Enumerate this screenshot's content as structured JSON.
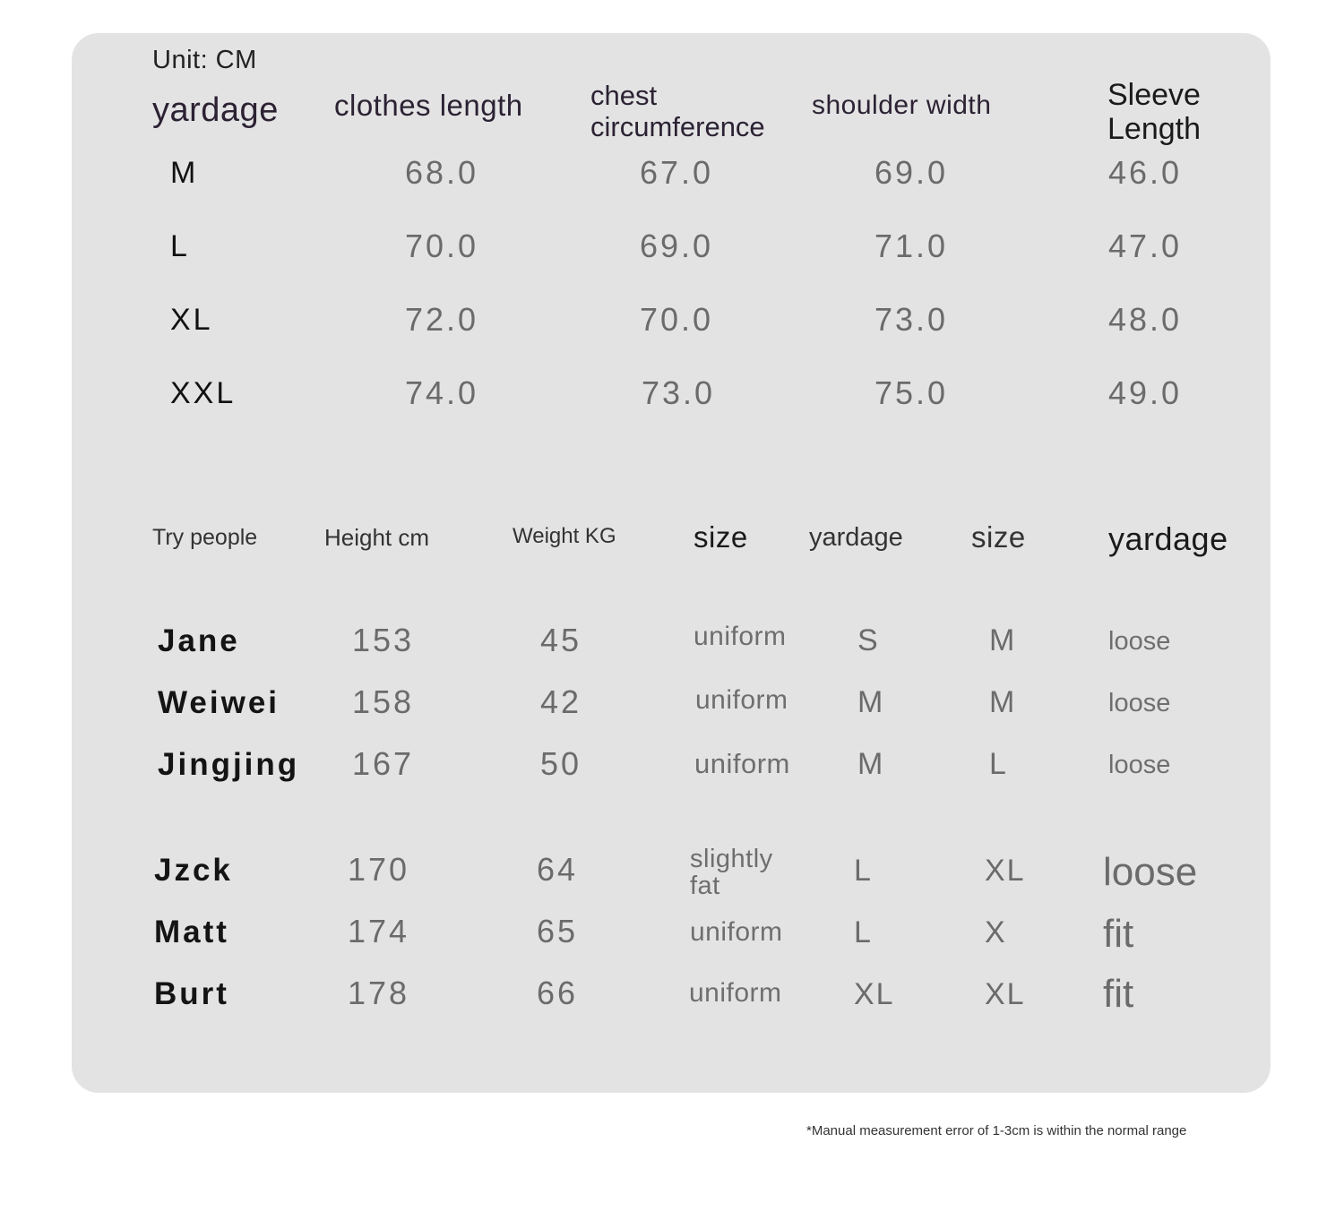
{
  "unit_label": "Unit:  CM",
  "measure_table": {
    "headers": [
      "yardage",
      "clothes length",
      "chest circumference",
      "shoulder width",
      "Sleeve Length"
    ],
    "rows": [
      {
        "size": "M",
        "clothes_length": "68.0",
        "chest": "67.0",
        "shoulder": "69.0",
        "sleeve": "46.0"
      },
      {
        "size": "L",
        "clothes_length": "70.0",
        "chest": "69.0",
        "shoulder": "71.0",
        "sleeve": "47.0"
      },
      {
        "size": "XL",
        "clothes_length": "72.0",
        "chest": "70.0",
        "shoulder": "73.0",
        "sleeve": "48.0"
      },
      {
        "size": "XXL",
        "clothes_length": "74.0",
        "chest": "73.0",
        "shoulder": "75.0",
        "sleeve": "49.0"
      }
    ]
  },
  "try_table": {
    "headers": [
      "Try people",
      "Height cm",
      "Weight KG",
      "size",
      "yardage",
      "size",
      "yardage"
    ],
    "rows": [
      {
        "name": "Jane",
        "height": "153",
        "weight": "45",
        "build": "uniform",
        "yardage": "S",
        "size": "M",
        "fit": "loose"
      },
      {
        "name": "Weiwei",
        "height": "158",
        "weight": "42",
        "build": "uniform",
        "yardage": "M",
        "size": "M",
        "fit": "loose"
      },
      {
        "name": "Jingjing",
        "height": "167",
        "weight": "50",
        "build": "uniform",
        "yardage": "M",
        "size": "L",
        "fit": "loose"
      },
      {
        "name": "Jzck",
        "height": "170",
        "weight": "64",
        "build": "slightly fat",
        "yardage": "L",
        "size": "XL",
        "fit": "loose"
      },
      {
        "name": "Matt",
        "height": "174",
        "weight": "65",
        "build": "uniform",
        "yardage": "L",
        "size": "X",
        "fit": "fit"
      },
      {
        "name": "Burt",
        "height": "178",
        "weight": "66",
        "build": "uniform",
        "yardage": "XL",
        "size": "XL",
        "fit": "fit"
      }
    ]
  },
  "footnote": "*Manual measurement error of 1-3cm is within the normal range"
}
